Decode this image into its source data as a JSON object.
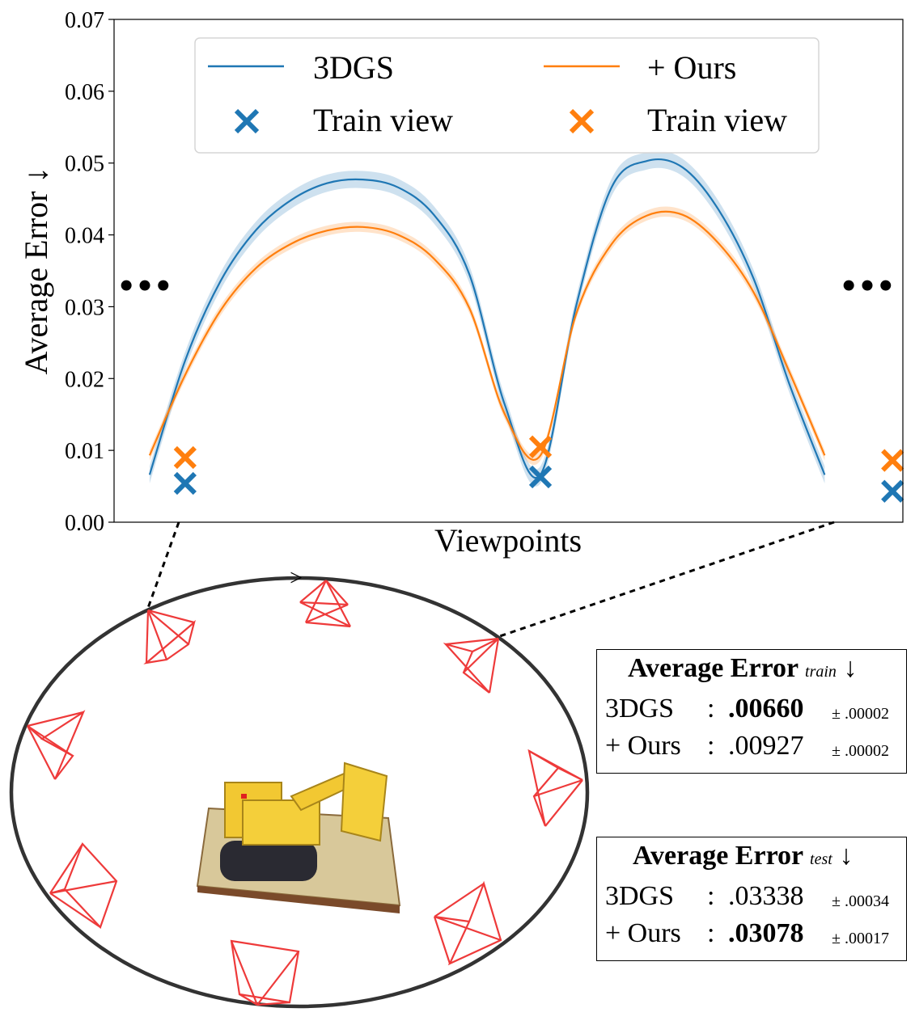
{
  "chart_data": {
    "type": "line",
    "xlabel": "Viewpoints",
    "ylabel": "Average Error ↓",
    "ylim": [
      0,
      0.07
    ],
    "yticks": [
      "0.00",
      "0.01",
      "0.02",
      "0.03",
      "0.04",
      "0.05",
      "0.06",
      "0.07"
    ],
    "xlim": [
      0,
      2.22
    ],
    "grid": false,
    "legend_position": "top-center",
    "continuation_marks": "•••",
    "series": [
      {
        "name": "3DGS",
        "color": "#1f77b4",
        "band": 0.0012,
        "x": [
          0.1,
          0.2,
          0.3,
          0.4,
          0.5,
          0.6,
          0.7,
          0.8,
          0.9,
          1.0,
          1.1,
          1.2,
          1.3,
          1.4,
          1.5,
          1.6,
          1.7,
          1.8,
          1.9,
          2.0
        ],
        "y": [
          0.0066,
          0.0225,
          0.0336,
          0.0407,
          0.0449,
          0.0472,
          0.0477,
          0.0466,
          0.0428,
          0.0345,
          0.0163,
          0.0066,
          0.03,
          0.0466,
          0.0503,
          0.0494,
          0.0436,
          0.0339,
          0.0193,
          0.0066
        ]
      },
      {
        "name": "+ Ours",
        "color": "#ff7f0e",
        "band": 0.0007,
        "x": [
          0.1,
          0.2,
          0.3,
          0.4,
          0.5,
          0.6,
          0.7,
          0.8,
          0.9,
          1.0,
          1.1,
          1.2,
          1.3,
          1.4,
          1.5,
          1.6,
          1.7,
          1.8,
          1.9,
          2.0
        ],
        "y": [
          0.0093,
          0.0205,
          0.0295,
          0.0354,
          0.0388,
          0.0406,
          0.0411,
          0.04,
          0.0367,
          0.0298,
          0.015,
          0.0093,
          0.0289,
          0.0387,
          0.0427,
          0.0428,
          0.0389,
          0.032,
          0.021,
          0.0093
        ]
      }
    ],
    "train_views": [
      {
        "name": "Train view",
        "color": "#1f77b4",
        "x": [
          0.2,
          1.2,
          2.2
        ],
        "y": [
          0.0054,
          0.0063,
          0.0043
        ]
      },
      {
        "name": "Train view",
        "color": "#ff7f0e",
        "x": [
          0.2,
          1.2,
          2.2
        ],
        "y": [
          0.009,
          0.0105,
          0.0086
        ]
      }
    ]
  },
  "legend": {
    "items": [
      {
        "kind": "line",
        "color": "#1f77b4",
        "label": "3DGS"
      },
      {
        "kind": "line",
        "color": "#ff7f0e",
        "label": "+ Ours"
      },
      {
        "kind": "marker",
        "color": "#1f77b4",
        "label": "Train view"
      },
      {
        "kind": "marker",
        "color": "#ff7f0e",
        "label": "Train view"
      }
    ]
  },
  "diagram": {
    "camera_color": "#ee3a3a",
    "orbit_color": "#333333",
    "direction_arrow": ">"
  },
  "stats": {
    "train": {
      "title": "Average Error",
      "subscript": "train",
      "arrow": "↓",
      "rows": [
        {
          "label": "3DGS",
          "sep": ":",
          "value": ".00660",
          "bold": true,
          "std": "± .00002"
        },
        {
          "label": "+ Ours",
          "sep": ":",
          "value": ".00927",
          "bold": false,
          "std": "± .00002"
        }
      ]
    },
    "test": {
      "title": "Average Error",
      "subscript": "test",
      "arrow": "↓",
      "rows": [
        {
          "label": "3DGS",
          "sep": ":",
          "value": ".03338",
          "bold": false,
          "std": "± .00034"
        },
        {
          "label": "+ Ours",
          "sep": ":",
          "value": ".03078",
          "bold": true,
          "std": "± .00017"
        }
      ]
    }
  }
}
